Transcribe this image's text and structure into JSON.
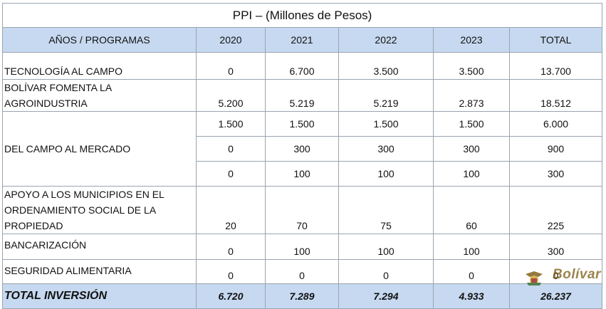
{
  "title": "PPI – (Millones de Pesos)",
  "headers": [
    "AÑOS / PROGRAMAS",
    "2020",
    "2021",
    "2022",
    "2023",
    "TOTAL"
  ],
  "rows": {
    "tecnologia": {
      "label": "TECNOLOGÍA AL CAMPO",
      "values": [
        "0",
        "6.700",
        "3.500",
        "3.500",
        "13.700"
      ]
    },
    "bolivar": {
      "label": "BOLÍVAR FOMENTA LA AGROINDUSTRIA",
      "values": [
        "5.200",
        "5.219",
        "5.219",
        "2.873",
        "18.512"
      ]
    },
    "campo": {
      "label": "DEL CAMPO AL MERCADO",
      "sub": [
        {
          "values": [
            "1.500",
            "1.500",
            "1.500",
            "1.500",
            "6.000"
          ]
        },
        {
          "values": [
            "0",
            "300",
            "300",
            "300",
            "900"
          ]
        },
        {
          "values": [
            "0",
            "100",
            "100",
            "100",
            "300"
          ]
        }
      ]
    },
    "apoyo": {
      "label": "APOYO A LOS MUNICIPIOS EN EL ORDENAMIENTO SOCIAL DE LA PROPIEDAD",
      "values": [
        "20",
        "70",
        "75",
        "60",
        "225"
      ]
    },
    "bancarizacion": {
      "label": "BANCARIZACIÓN",
      "values": [
        "0",
        "100",
        "100",
        "100",
        "300"
      ]
    },
    "seguridad": {
      "label": "SEGURIDAD ALIMENTARIA",
      "values": [
        "0",
        "0",
        "0",
        "0",
        "0"
      ]
    }
  },
  "total": {
    "label": "TOTAL INVERSIÓN",
    "values": [
      "6.720",
      "7.289",
      "7.294",
      "4.933",
      "26.237"
    ]
  },
  "watermark": {
    "text": "Bolívar",
    "icon": "coat-of-arms-icon"
  }
}
